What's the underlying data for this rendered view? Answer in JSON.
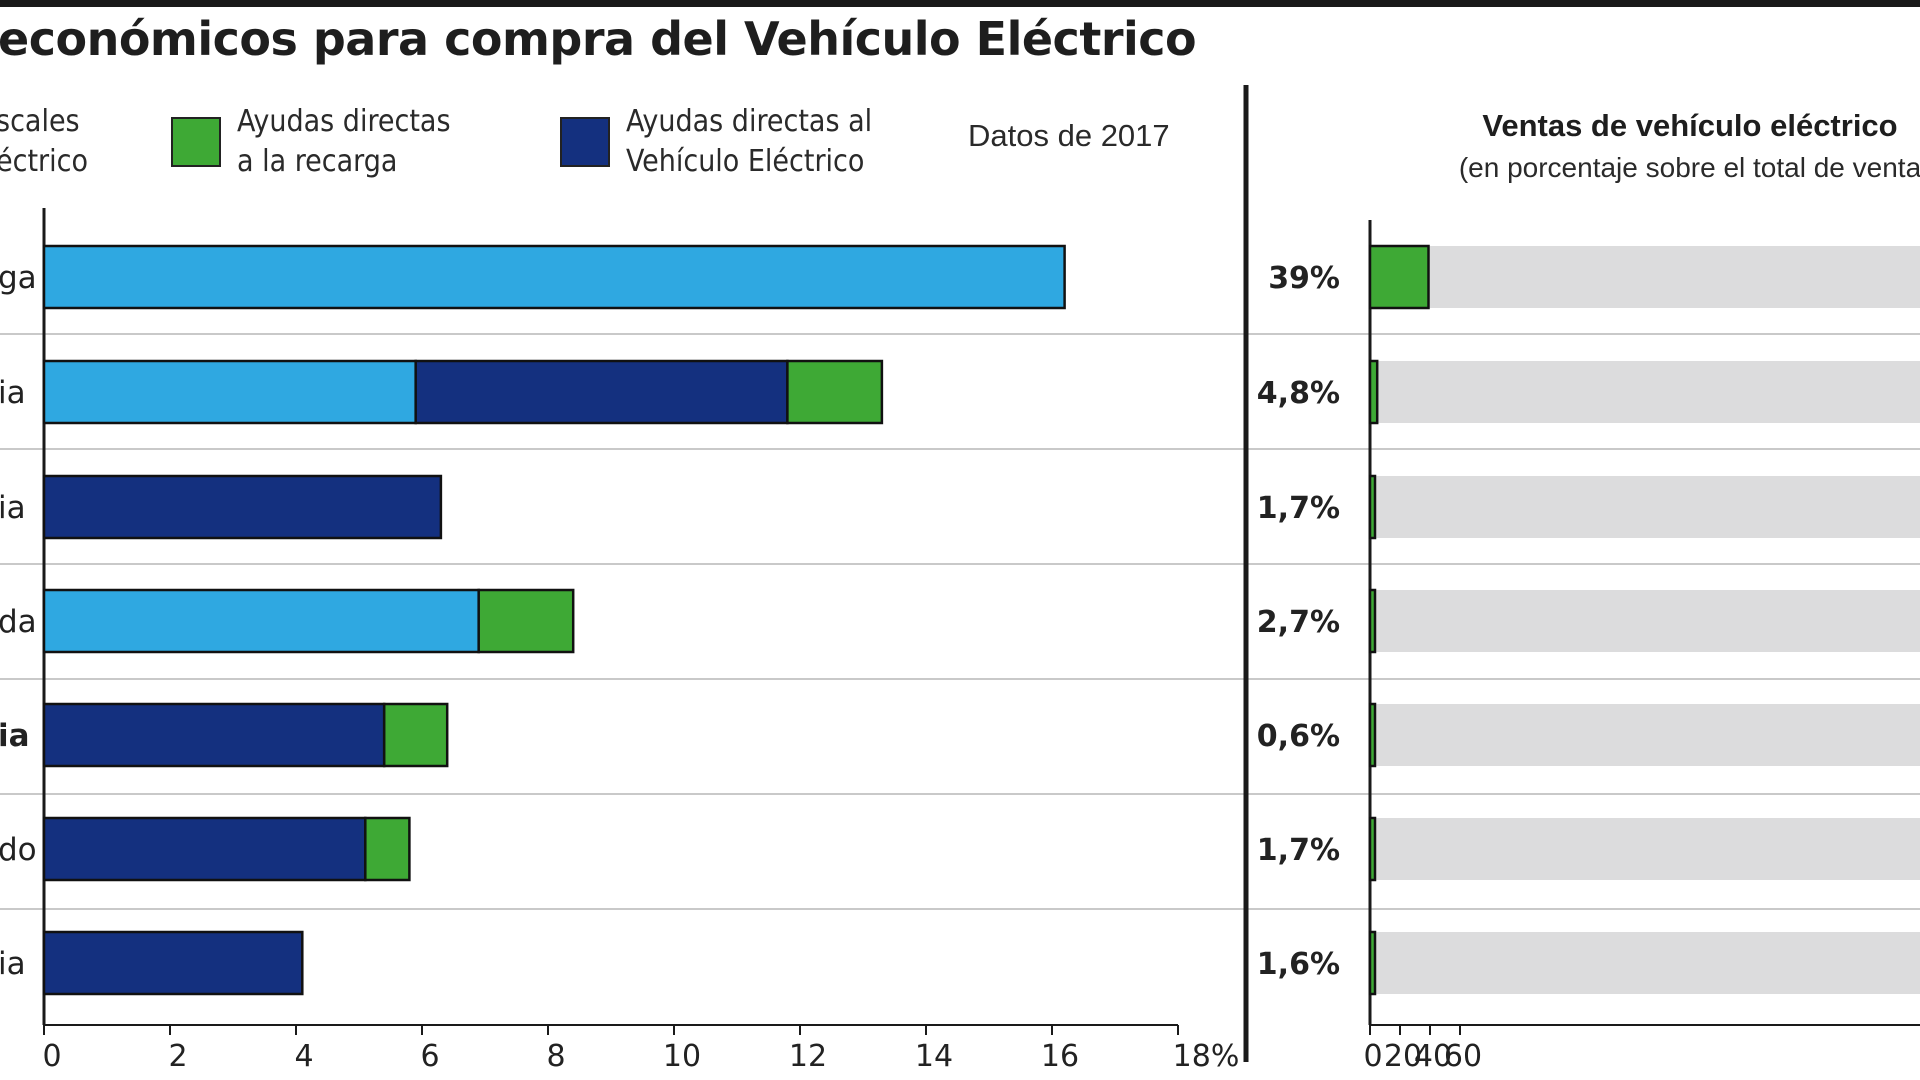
{
  "title": "económicos para compra del Vehículo Eléctrico",
  "datos": "Datos de 2017",
  "legend": [
    {
      "line1": "scales",
      "line2": "éctrico",
      "color": "#2fa8e1"
    },
    {
      "line1": "Ayudas directas",
      "line2": "a la recarga",
      "color": "#3ea935"
    },
    {
      "line1": "Ayudas directas al",
      "line2": "Vehículo Eléctrico",
      "color": "#14307f"
    }
  ],
  "right_panel": {
    "title": "Ventas de vehículo eléctrico",
    "subtitle": "(en porcentaje sobre el total de venta"
  },
  "chart_data": [
    {
      "type": "bar",
      "orientation": "horizontal",
      "stacked": true,
      "categories": [
        "ga",
        "ia",
        "ia",
        "da",
        "ia",
        "do",
        "ia"
      ],
      "series": [
        {
          "name": "scales éctrico",
          "color": "#2fa8e1",
          "values": [
            16.2,
            5.9,
            0,
            6.9,
            0,
            0,
            0
          ]
        },
        {
          "name": "Ayudas directas al Vehículo Eléctrico",
          "color": "#14307f",
          "values": [
            0,
            5.9,
            6.3,
            0,
            5.4,
            5.1,
            4.1
          ]
        },
        {
          "name": "Ayudas directas a la recarga",
          "color": "#3ea935",
          "values": [
            0,
            1.5,
            0,
            1.5,
            1.0,
            0.7,
            0
          ]
        }
      ],
      "xlim": [
        0,
        18
      ],
      "xticks": [
        "0",
        "2",
        "4",
        "6",
        "8",
        "10",
        "12",
        "14",
        "16",
        "18%"
      ],
      "grid": false
    },
    {
      "type": "bar",
      "orientation": "horizontal",
      "title": "Ventas de vehículo eléctrico",
      "subtitle": "(en porcentaje sobre el total de venta",
      "values": [
        39,
        4.8,
        1.7,
        2.7,
        0.6,
        1.7,
        1.6
      ],
      "labels": [
        "39%",
        "4,8%",
        "1,7%",
        "2,7%",
        "0,6%",
        "1,7%",
        "1,6%"
      ],
      "xlim": [
        0,
        100
      ],
      "xticks": [
        "0",
        "20",
        "40",
        "60"
      ],
      "bar_color": "#3ea935",
      "track_color": "#dcdcdd"
    }
  ]
}
